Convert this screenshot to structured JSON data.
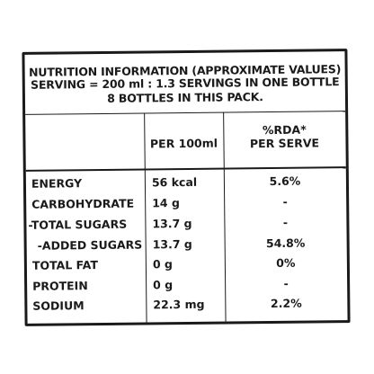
{
  "header": {
    "line1": "NUTRITION INFORMATION (APPROXIMATE VALUES)",
    "line2": "SERVING = 200 ml : 1.3 SERVINGS IN ONE BOTTLE",
    "line3": "8 BOTTLES IN THIS PACK."
  },
  "columns": {
    "per_100ml": "PER 100ml",
    "rda_line1": "%RDA*",
    "rda_line2": "PER SERVE"
  },
  "rows": [
    {
      "name": "ENERGY",
      "per_100ml": "56 kcal",
      "rda": "5.6%"
    },
    {
      "name": "CARBOHYDRATE",
      "per_100ml": "14 g",
      "rda": "-"
    },
    {
      "name": "-TOTAL SUGARS",
      "per_100ml": "13.7 g",
      "rda": "-"
    },
    {
      "name": "-ADDED SUGARS",
      "per_100ml": "13.7 g",
      "rda": "54.8%"
    },
    {
      "name": "TOTAL FAT",
      "per_100ml": "0 g",
      "rda": "0%"
    },
    {
      "name": "PROTEIN",
      "per_100ml": "0 g",
      "rda": "-"
    },
    {
      "name": "SODIUM",
      "per_100ml": "22.3 mg",
      "rda": "2.2%"
    }
  ]
}
